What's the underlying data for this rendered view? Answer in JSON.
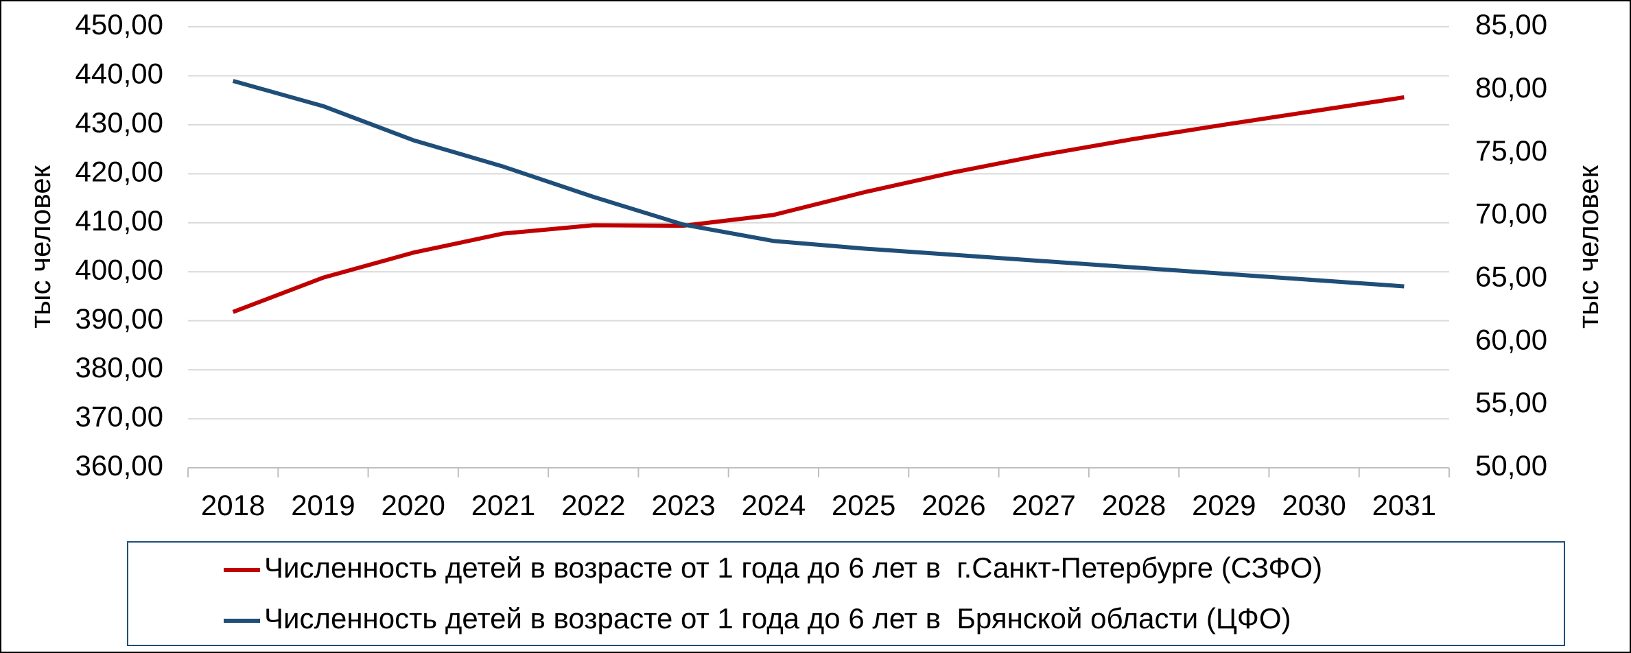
{
  "chart_data": {
    "type": "line",
    "categories": [
      "2018",
      "2019",
      "2020",
      "2021",
      "2022",
      "2023",
      "2024",
      "2025",
      "2026",
      "2027",
      "2028",
      "2029",
      "2030",
      "2031"
    ],
    "series": [
      {
        "name": "Численность детей в возрасте от 1 года до 6 лет в  г.Санкт-Петербурге (СЗФО)",
        "color": "#c00000",
        "axis": "y",
        "values": [
          391.8,
          398.8,
          403.9,
          407.8,
          409.5,
          409.4,
          411.6,
          416.2,
          420.3,
          423.9,
          427.1,
          430.0,
          432.8,
          435.6
        ]
      },
      {
        "name": "Численность детей в возрасте от 1 года до 6 лет в  Брянской области (ЦФО)",
        "color": "#1f4e79",
        "axis": "y2",
        "values": [
          80.7,
          78.7,
          76.0,
          73.9,
          71.5,
          69.3,
          68.0,
          67.4,
          66.9,
          66.4,
          65.9,
          65.4,
          64.9,
          64.4
        ]
      }
    ],
    "ylabel": "тыс человек",
    "y2label": "тыс человек",
    "ylim": [
      360,
      450
    ],
    "yticks": [
      {
        "value": 360,
        "label": "360,00"
      },
      {
        "value": 370,
        "label": "370,00"
      },
      {
        "value": 380,
        "label": "380,00"
      },
      {
        "value": 390,
        "label": "390,00"
      },
      {
        "value": 400,
        "label": "400,00"
      },
      {
        "value": 410,
        "label": "410,00"
      },
      {
        "value": 420,
        "label": "420,00"
      },
      {
        "value": 430,
        "label": "430,00"
      },
      {
        "value": 440,
        "label": "440,00"
      },
      {
        "value": 450,
        "label": "450,00"
      }
    ],
    "y2lim": [
      50,
      85
    ],
    "y2ticks": [
      {
        "value": 50,
        "label": "50,00"
      },
      {
        "value": 55,
        "label": "55,00"
      },
      {
        "value": 60,
        "label": "60,00"
      },
      {
        "value": 65,
        "label": "65,00"
      },
      {
        "value": 70,
        "label": "70,00"
      },
      {
        "value": 75,
        "label": "75,00"
      },
      {
        "value": 80,
        "label": "80,00"
      },
      {
        "value": 85,
        "label": "85,00"
      }
    ],
    "grid": true,
    "legend": "bottom"
  }
}
